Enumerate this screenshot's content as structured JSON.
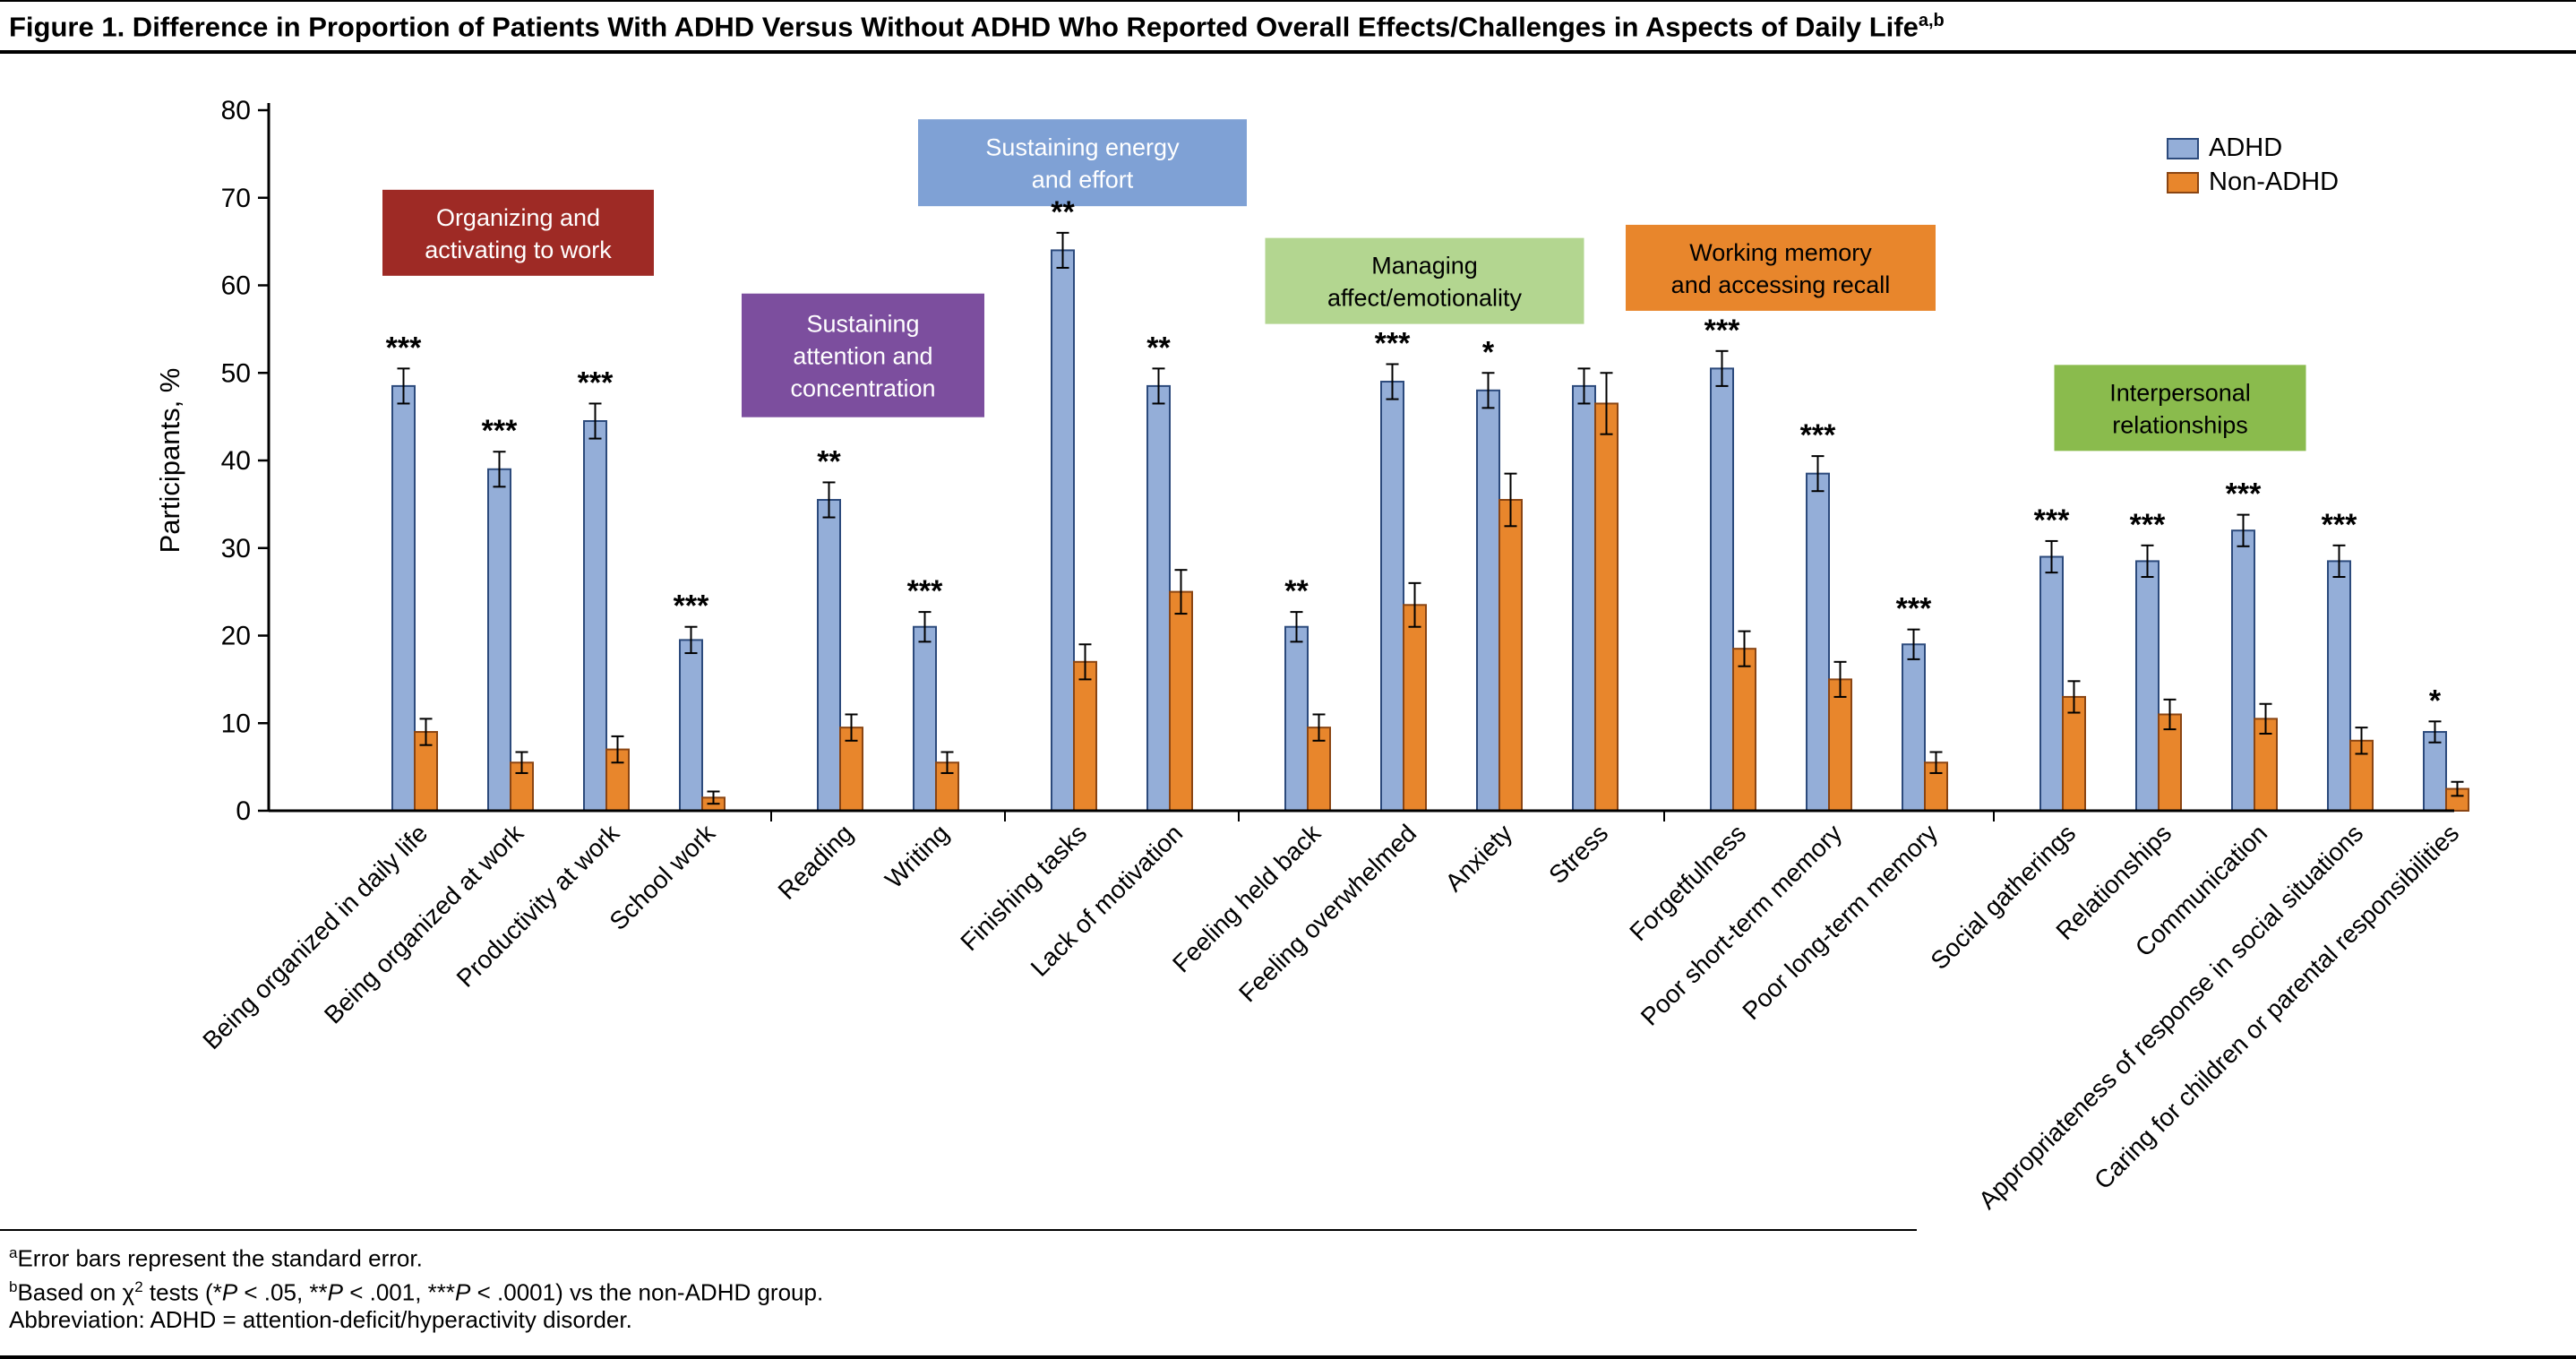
{
  "figure": {
    "title": "Figure 1. Difference in Proportion of Patients With ADHD Versus Without ADHD Who Reported Overall Effects/Challenges in Aspects of Daily Life",
    "title_sup": "a,b"
  },
  "footnotes": [
    [
      {
        "t": "a",
        "sup": true
      },
      {
        "t": "Error bars represent the standard error."
      }
    ],
    [
      {
        "t": "b",
        "sup": true
      },
      {
        "t": "Based on χ"
      },
      {
        "t": "2",
        "sup": true
      },
      {
        "t": " tests (*"
      },
      {
        "t": "P",
        "i": true
      },
      {
        "t": " < .05, **"
      },
      {
        "t": "P",
        "i": true
      },
      {
        "t": " < .001, ***"
      },
      {
        "t": "P",
        "i": true
      },
      {
        "t": " < .0001) vs the non-ADHD group."
      }
    ],
    [
      {
        "t": "Abbreviation: ADHD = attention-deficit/hyperactivity disorder."
      }
    ]
  ],
  "chart_data": {
    "type": "bar",
    "title": "Difference in Proportion of Patients With ADHD Versus Without ADHD Who Reported Overall Effects/Challenges in Aspects of Daily Life",
    "ylabel": "Participants, %",
    "ylim": [
      0,
      80
    ],
    "yticks": [
      0,
      10,
      20,
      30,
      40,
      50,
      60,
      70,
      80
    ],
    "series": [
      "ADHD",
      "Non-ADHD"
    ],
    "legend_position": "top-right",
    "grid": false,
    "colors": {
      "adhd_fill": "#94aed8",
      "adhd_stroke": "#2c4a7c",
      "non_adhd_fill": "#e8862c",
      "non_adhd_stroke": "#8a4513",
      "error_bar": "#000000"
    },
    "groups": [
      {
        "label": "Organizing and activating to work",
        "label_lines": [
          "Organizing and",
          "activating to work"
        ],
        "box_fill": "#9e2a25",
        "box_text": "#ffffff",
        "items": [
          {
            "category": "Being organized in daily life",
            "adhd": 48.5,
            "adhd_se": 2.0,
            "non_adhd": 9.0,
            "non_adhd_se": 1.5,
            "sig": "***"
          },
          {
            "category": "Being organized at work",
            "adhd": 39.0,
            "adhd_se": 2.0,
            "non_adhd": 5.5,
            "non_adhd_se": 1.2,
            "sig": "***"
          },
          {
            "category": "Productivity at work",
            "adhd": 44.5,
            "adhd_se": 2.0,
            "non_adhd": 7.0,
            "non_adhd_se": 1.5,
            "sig": "***"
          },
          {
            "category": "School work",
            "adhd": 19.5,
            "adhd_se": 1.5,
            "non_adhd": 1.5,
            "non_adhd_se": 0.7,
            "sig": "***"
          }
        ]
      },
      {
        "label": "Sustaining attention and concentration",
        "label_lines": [
          "Sustaining",
          "attention and",
          "concentration"
        ],
        "box_fill": "#7c4e9e",
        "box_text": "#ffffff",
        "items": [
          {
            "category": "Reading",
            "adhd": 35.5,
            "adhd_se": 2.0,
            "non_adhd": 9.5,
            "non_adhd_se": 1.5,
            "sig": "**"
          },
          {
            "category": "Writing",
            "adhd": 21.0,
            "adhd_se": 1.7,
            "non_adhd": 5.5,
            "non_adhd_se": 1.2,
            "sig": "***"
          }
        ]
      },
      {
        "label": "Sustaining energy and effort",
        "label_lines": [
          "Sustaining energy",
          "and effort"
        ],
        "box_fill": "#7fa1d5",
        "box_text": "#ffffff",
        "items": [
          {
            "category": "Finishing tasks",
            "adhd": 64.0,
            "adhd_se": 2.0,
            "non_adhd": 17.0,
            "non_adhd_se": 2.0,
            "sig": "**"
          },
          {
            "category": "Lack of motivation",
            "adhd": 48.5,
            "adhd_se": 2.0,
            "non_adhd": 25.0,
            "non_adhd_se": 2.5,
            "sig": "**"
          }
        ]
      },
      {
        "label": "Managing affect/emotionality",
        "label_lines": [
          "Managing",
          "affect/emotionality"
        ],
        "box_fill": "#b3d690",
        "box_text": "#000000",
        "items": [
          {
            "category": "Feeling held back",
            "adhd": 21.0,
            "adhd_se": 1.7,
            "non_adhd": 9.5,
            "non_adhd_se": 1.5,
            "sig": "**"
          },
          {
            "category": "Feeling overwhelmed",
            "adhd": 49.0,
            "adhd_se": 2.0,
            "non_adhd": 23.5,
            "non_adhd_se": 2.5,
            "sig": "***"
          },
          {
            "category": "Anxiety",
            "adhd": 48.0,
            "adhd_se": 2.0,
            "non_adhd": 35.5,
            "non_adhd_se": 3.0,
            "sig": "*"
          },
          {
            "category": "Stress",
            "adhd": 48.5,
            "adhd_se": 2.0,
            "non_adhd": 46.5,
            "non_adhd_se": 3.5,
            "sig": ""
          }
        ]
      },
      {
        "label": "Working memory and accessing recall",
        "label_lines": [
          "Working memory",
          "and accessing recall"
        ],
        "box_fill": "#e8862c",
        "box_text": "#000000",
        "items": [
          {
            "category": "Forgetfulness",
            "adhd": 50.5,
            "adhd_se": 2.0,
            "non_adhd": 18.5,
            "non_adhd_se": 2.0,
            "sig": "***"
          },
          {
            "category": "Poor short-term memory",
            "adhd": 38.5,
            "adhd_se": 2.0,
            "non_adhd": 15.0,
            "non_adhd_se": 2.0,
            "sig": "***"
          },
          {
            "category": "Poor long-term memory",
            "adhd": 19.0,
            "adhd_se": 1.7,
            "non_adhd": 5.5,
            "non_adhd_se": 1.2,
            "sig": "***"
          }
        ]
      },
      {
        "label": "Interpersonal relationships",
        "label_lines": [
          "Interpersonal",
          "relationships"
        ],
        "box_fill": "#8abb4d",
        "box_text": "#000000",
        "items": [
          {
            "category": "Social gatherings",
            "adhd": 29.0,
            "adhd_se": 1.8,
            "non_adhd": 13.0,
            "non_adhd_se": 1.8,
            "sig": "***"
          },
          {
            "category": "Relationships",
            "adhd": 28.5,
            "adhd_se": 1.8,
            "non_adhd": 11.0,
            "non_adhd_se": 1.7,
            "sig": "***"
          },
          {
            "category": "Communication",
            "adhd": 32.0,
            "adhd_se": 1.8,
            "non_adhd": 10.5,
            "non_adhd_se": 1.7,
            "sig": "***"
          },
          {
            "category": "Appropriateness of response in social situations",
            "adhd": 28.5,
            "adhd_se": 1.8,
            "non_adhd": 8.0,
            "non_adhd_se": 1.5,
            "sig": "***"
          },
          {
            "category": "Caring for children or parental responsibilities",
            "adhd": 9.0,
            "adhd_se": 1.2,
            "non_adhd": 2.5,
            "non_adhd_se": 0.8,
            "sig": "*"
          }
        ]
      }
    ]
  }
}
